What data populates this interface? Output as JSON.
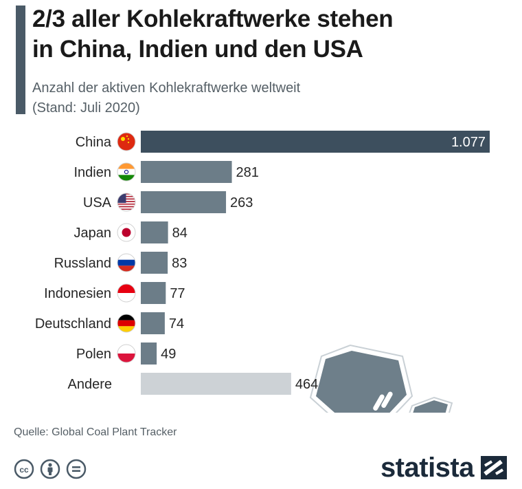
{
  "header": {
    "title_line1": "2/3 aller Kohlekraftwerke stehen",
    "title_line2": "in China, Indien und den USA",
    "subtitle_line1": "Anzahl der aktiven Kohlekraftwerke weltweit",
    "subtitle_line2": "(Stand: Juli 2020)"
  },
  "chart_data": {
    "type": "bar",
    "orientation": "horizontal",
    "title": "2/3 aller Kohlekraftwerke stehen in China, Indien und den USA",
    "subtitle": "Anzahl der aktiven Kohlekraftwerke weltweit (Stand: Juli 2020)",
    "categories": [
      "China",
      "Indien",
      "USA",
      "Japan",
      "Russland",
      "Indonesien",
      "Deutschland",
      "Polen",
      "Andere"
    ],
    "values": [
      1077,
      281,
      263,
      84,
      83,
      77,
      74,
      49,
      464
    ],
    "value_labels": [
      "1.077",
      "281",
      "263",
      "84",
      "83",
      "77",
      "74",
      "49",
      "464"
    ],
    "flags": [
      "china-flag-icon",
      "india-flag-icon",
      "usa-flag-icon",
      "japan-flag-icon",
      "russia-flag-icon",
      "indonesia-flag-icon",
      "germany-flag-icon",
      "poland-flag-icon",
      ""
    ],
    "xlim": [
      0,
      1077
    ],
    "colors": {
      "top": "#3d4f5e",
      "default": "#6c7d88",
      "other": "#cdd2d6"
    }
  },
  "footer": {
    "source": "Quelle: Global Coal Plant Tracker",
    "brand": "statista",
    "license_icons": [
      "cc-icon",
      "by-icon",
      "nd-icon"
    ]
  }
}
